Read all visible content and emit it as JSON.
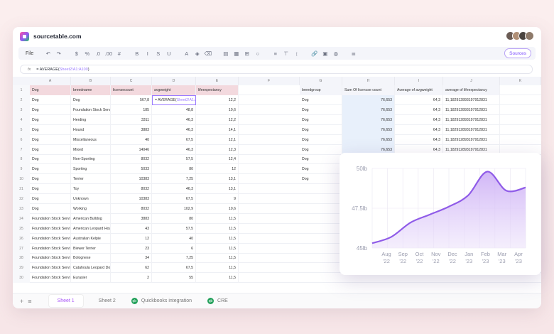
{
  "app": {
    "brand": "sourcetable.com"
  },
  "toolbar": {
    "file": "File",
    "sources": "Sources",
    "icons": [
      "undo-icon",
      "redo-icon",
      "dollar-icon",
      "percent-icon",
      "decimal-decrease-icon",
      "decimal-increase-icon",
      "number-icon",
      "bold-icon",
      "italic-icon",
      "strikethrough-icon",
      "underline-icon",
      "font-color-icon",
      "fill-color-icon",
      "eraser-icon",
      "table-icon",
      "grid-icon",
      "merge-icon",
      "circle-icon",
      "align-left-icon",
      "vertical-align-icon",
      "text-height-icon",
      "link-icon",
      "image-icon",
      "chart-icon",
      "filter-icon"
    ],
    "glyphs": [
      "↶",
      "↷",
      "$",
      "%",
      ".0",
      ".00",
      "#",
      "B",
      "I",
      "S",
      "U",
      "A",
      "◈",
      "⌫",
      "▤",
      "▦",
      "⊞",
      "○",
      "≡",
      "⊤",
      "↕",
      "🔗",
      "▣",
      "◍",
      "≣"
    ]
  },
  "formula": {
    "fx": "fx",
    "prefix": "= AVERAGE(",
    "ref": "Sheet2!A1:A100",
    "suffix": ")"
  },
  "columns": [
    "A",
    "B",
    "C",
    "D",
    "E",
    "F",
    "G",
    "H",
    "I",
    "J",
    "K"
  ],
  "headers": {
    "A": "Dog",
    "B": "breedname",
    "C": "licensecount",
    "D": "avgweight",
    "E": "lifeexpectancy"
  },
  "rows": [
    [
      "2",
      "Dog",
      "Dog",
      "567,8",
      "",
      "12,2"
    ],
    [
      "3",
      "Dog",
      "Foundation Stock Servi",
      "185",
      "48,8",
      "10,6"
    ],
    [
      "4",
      "Dog",
      "Herding",
      "3311",
      "46,3",
      "12,2"
    ],
    [
      "5",
      "Dog",
      "Hound",
      "3883",
      "46,3",
      "14,1"
    ],
    [
      "6",
      "Dog",
      "Miscellaneous",
      "40",
      "67,5",
      "12,1"
    ],
    [
      "7",
      "Dog",
      "Mixed",
      "14046",
      "46,3",
      "12,3"
    ],
    [
      "8",
      "Dog",
      "Non-Sporting",
      "8032",
      "57,5",
      "12,4"
    ],
    [
      "9",
      "Dog",
      "Sporting",
      "5033",
      "80",
      "12"
    ],
    [
      "10",
      "Dog",
      "Terrier",
      "10383",
      "7,25",
      "13,1"
    ],
    [
      "21",
      "Dog",
      "Toy",
      "8032",
      "46,3",
      "13,1"
    ],
    [
      "22",
      "Dog",
      "Unknown",
      "10383",
      "67,5",
      "9"
    ],
    [
      "23",
      "Dog",
      "Working",
      "8032",
      "102,9",
      "10,6"
    ],
    [
      "24",
      "Foundation Stock Servi",
      "American Bulldog",
      "3883",
      "80",
      "11,5"
    ],
    [
      "25",
      "Foundation Stock Servi",
      "American Leopard Hou",
      "43",
      "57,5",
      "11,5"
    ],
    [
      "26",
      "Foundation Stock Servi",
      "Australian Kelpie",
      "12",
      "40",
      "11,5"
    ],
    [
      "27",
      "Foundation Stock Servi",
      "Biewer Terrier",
      "23",
      "6",
      "11,5"
    ],
    [
      "28",
      "Foundation Stock Servi",
      "Bolognese",
      "34",
      "7,25",
      "11,5"
    ],
    [
      "29",
      "Foundation Stock Servi",
      "Catahoula Leopard Dog",
      "62",
      "67,5",
      "11,5"
    ],
    [
      "30",
      "Foundation Stock Servi",
      "Eurasier",
      "2",
      "55",
      "11,5"
    ]
  ],
  "pivot": {
    "headers": [
      "breedgroup",
      "Sum Of licencse count",
      "Average of avgweight",
      "average of lifeexpectancy"
    ],
    "rows": [
      [
        "Dog",
        "76,653",
        "64,3",
        "11,18291289319791283​1"
      ],
      [
        "Dog",
        "76,653",
        "64,3",
        "11,18291289319791283​1"
      ],
      [
        "Dog",
        "76,653",
        "64,3",
        "11,18291289319791283​1"
      ],
      [
        "Dog",
        "76,653",
        "64,3",
        "11,18291289319791283​1"
      ],
      [
        "Dog",
        "76,653",
        "64,3",
        "11,18291289319791283​1"
      ],
      [
        "Dog",
        "76,653",
        "64,3",
        "11,18291289319791283​1"
      ],
      [
        "Dog",
        "",
        "",
        ""
      ],
      [
        "Dog",
        "",
        "",
        ""
      ],
      [
        "Dog",
        "",
        "",
        ""
      ]
    ]
  },
  "active_cell": {
    "prefix": "= AVERAGE(",
    "ref": "Sheet2!A1:A100",
    "suffix": ")"
  },
  "sheets": {
    "tabs": [
      "Sheet 1",
      "Sheet 2",
      "Quickbooks integration",
      "CRE"
    ],
    "qb": "qb"
  },
  "colors": {
    "accent": "#9b5cf6",
    "header_fill": "#f3d9de",
    "pivot_fill": "#e8f0fb"
  },
  "chart_data": {
    "type": "area",
    "x": [
      "Aug '22",
      "Sep '22",
      "Oct '22",
      "Nov '22",
      "Dec '22",
      "Jan '23",
      "Feb '23",
      "Mar '23",
      "Apr '23"
    ],
    "x_top": [
      "Aug",
      "Sep",
      "Oct",
      "Nov",
      "Dec",
      "Jan",
      "Feb",
      "Mar",
      "Apr"
    ],
    "x_bottom": [
      "'22",
      "'22",
      "'22",
      "'22",
      "'22",
      "'23",
      "'23",
      "'23",
      "'23"
    ],
    "values": [
      45.3,
      45.7,
      46.6,
      47.1,
      47.6,
      48.3,
      49.8,
      48.6,
      48.8
    ],
    "yticks": [
      "50lb",
      "47.5lb",
      "45lb"
    ],
    "ylim": [
      45,
      50
    ],
    "color": "#8f5be8"
  }
}
